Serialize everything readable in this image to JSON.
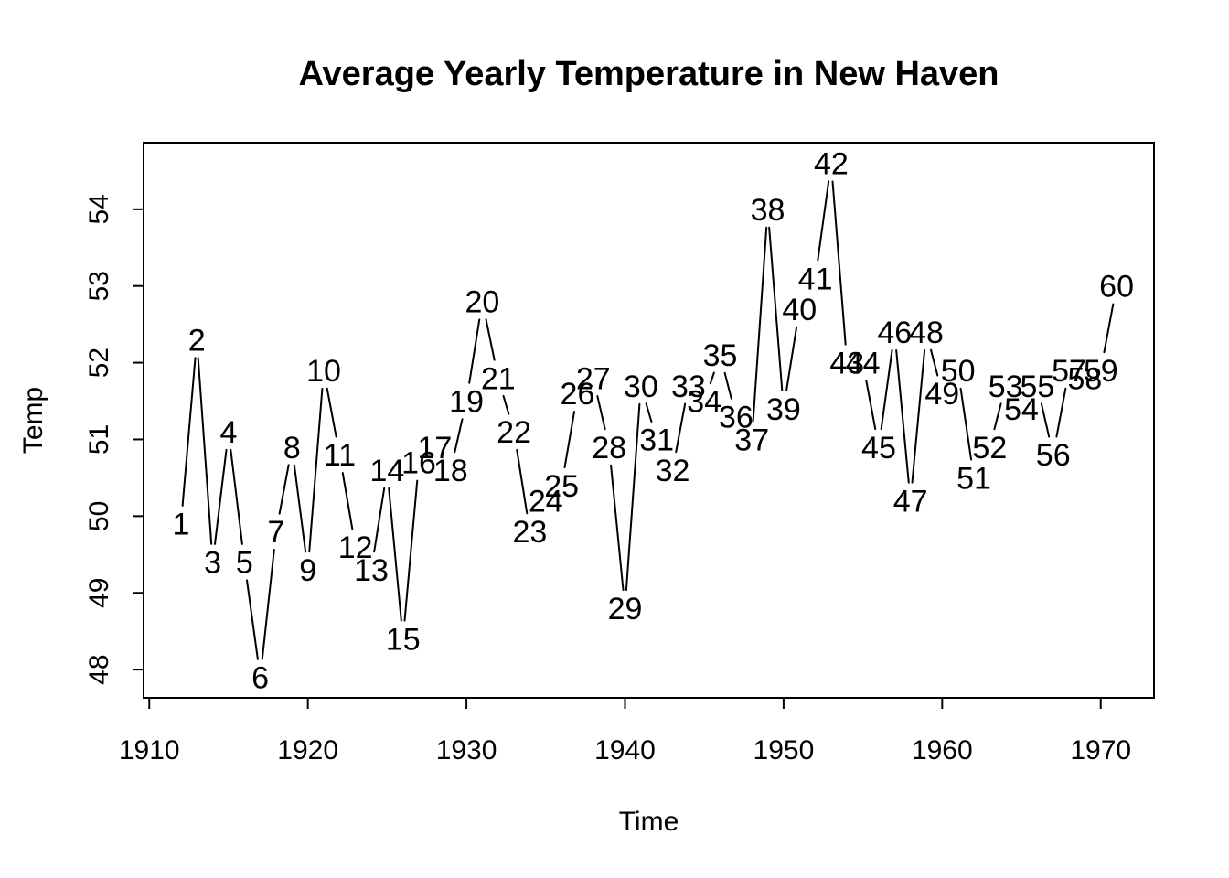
{
  "page": {
    "background_color": "#FFFFFF",
    "ink_color": "#000000"
  },
  "chart_data": {
    "type": "line",
    "title": "Average Yearly Temperature in New Haven",
    "xlabel": "Time",
    "ylabel": "Temp",
    "grid": false,
    "legend": false,
    "marker_style": "index-number-labels-at-points",
    "line_style": "solid-segments-with-gaps-around-labels",
    "line_color": "#000000",
    "text_color": "#000000",
    "xlim": [
      1909.64,
      1973.36
    ],
    "ylim": [
      47.632,
      54.868
    ],
    "x_ticks": [
      1910,
      1920,
      1930,
      1940,
      1950,
      1960,
      1970
    ],
    "y_ticks": [
      48,
      49,
      50,
      51,
      52,
      53,
      54
    ],
    "years": [
      1912,
      1913,
      1914,
      1915,
      1916,
      1917,
      1918,
      1919,
      1920,
      1921,
      1922,
      1923,
      1924,
      1925,
      1926,
      1927,
      1928,
      1929,
      1930,
      1931,
      1932,
      1933,
      1934,
      1935,
      1936,
      1937,
      1938,
      1939,
      1940,
      1941,
      1942,
      1943,
      1944,
      1945,
      1946,
      1947,
      1948,
      1949,
      1950,
      1951,
      1952,
      1953,
      1954,
      1955,
      1956,
      1957,
      1958,
      1959,
      1960,
      1961,
      1962,
      1963,
      1964,
      1965,
      1966,
      1967,
      1968,
      1969,
      1970,
      1971
    ],
    "values": [
      49.9,
      52.3,
      49.4,
      51.1,
      49.4,
      47.9,
      49.8,
      50.9,
      49.3,
      51.9,
      50.8,
      49.6,
      49.3,
      50.6,
      48.4,
      50.7,
      50.9,
      50.6,
      51.5,
      52.8,
      51.8,
      51.1,
      49.8,
      50.2,
      50.4,
      51.6,
      51.8,
      50.9,
      48.8,
      51.7,
      51.0,
      50.6,
      51.7,
      51.5,
      52.1,
      51.3,
      51.0,
      54.0,
      51.4,
      52.7,
      53.1,
      54.6,
      52.0,
      52.0,
      50.9,
      52.4,
      50.2,
      52.4,
      51.6,
      51.9,
      50.5,
      50.9,
      51.7,
      51.4,
      51.7,
      50.8,
      51.9,
      51.8,
      51.9,
      53.0
    ],
    "point_labels": [
      "1",
      "2",
      "3",
      "4",
      "5",
      "6",
      "7",
      "8",
      "9",
      "10",
      "11",
      "12",
      "13",
      "14",
      "15",
      "16",
      "17",
      "18",
      "19",
      "20",
      "21",
      "22",
      "23",
      "24",
      "25",
      "26",
      "27",
      "28",
      "29",
      "30",
      "31",
      "32",
      "33",
      "34",
      "35",
      "36",
      "37",
      "38",
      "39",
      "40",
      "41",
      "42",
      "43",
      "44",
      "45",
      "46",
      "47",
      "48",
      "49",
      "50",
      "51",
      "52",
      "53",
      "54",
      "55",
      "56",
      "57",
      "58",
      "59",
      "60"
    ]
  }
}
